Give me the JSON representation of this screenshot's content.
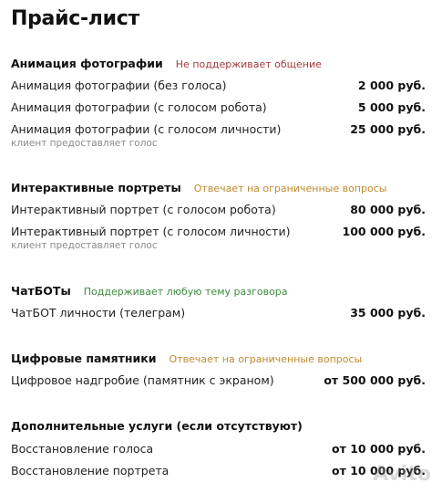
{
  "title": "Прайс-лист",
  "colors": {
    "tag_red": "#a33a3a",
    "tag_orange": "#c08a2e",
    "tag_green": "#3d8b3d"
  },
  "sections": [
    {
      "title": "Анимация фотографии",
      "tag": "Не поддерживает общение",
      "items": [
        {
          "label": "Анимация фотографии (без голоса)",
          "price": "2 000 руб."
        },
        {
          "label": "Анимация фотографии (с голосом робота)",
          "price": "5 000 руб."
        },
        {
          "label": "Анимация фотографии (с голосом личности)",
          "price": "25 000 руб."
        }
      ],
      "note": "клиент предоставляет голос"
    },
    {
      "title": "Интерактивные портреты",
      "tag": "Отвечает на ограниченные вопросы",
      "items": [
        {
          "label": "Интерактивный портрет (с голосом робота)",
          "price": "80 000 руб."
        },
        {
          "label": "Интерактивный портрет (с голосом личности)",
          "price": "100 000 руб."
        }
      ],
      "note": "клиент предоставляет голос"
    },
    {
      "title": "ЧатБОТы",
      "tag": "Поддерживает любую тему разговора",
      "items": [
        {
          "label": "ЧатБОТ личности (телеграм)",
          "price": "35 000 руб."
        }
      ]
    },
    {
      "title": "Цифровые памятники",
      "tag": "Отвечает на ограниченные вопросы",
      "items": [
        {
          "label": "Цифровое надгробие (памятник с экраном)",
          "price": "от 500 000 руб."
        }
      ]
    },
    {
      "title": "Дополнительные услуги (если отсутствуют)",
      "items": [
        {
          "label": "Восстановление голоса",
          "price": "от 10 000 руб."
        },
        {
          "label": "Восстановление портрета",
          "price": "от 10 000 руб."
        }
      ]
    }
  ],
  "watermark": "Avito"
}
